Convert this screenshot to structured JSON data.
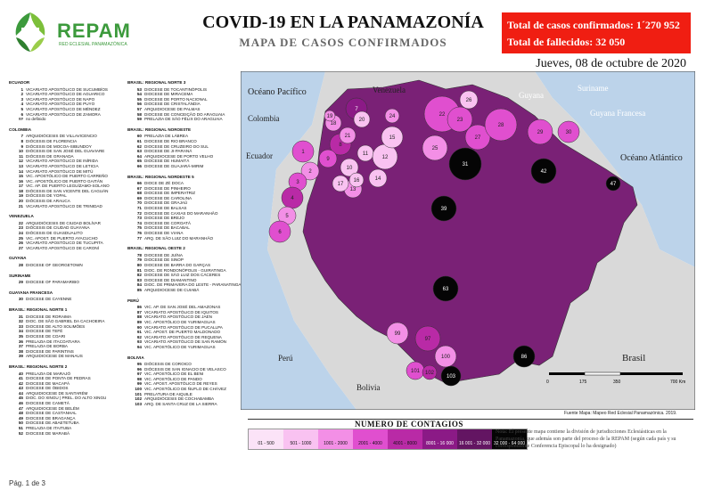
{
  "header": {
    "brand": "REPAM",
    "brand_sub": "RED ECLESIAL PANAMAZÓNICA",
    "title": "COVID-19 EN LA PANAMAZONÍA",
    "subtitle": "MAPA DE CASOS CONFIRMADOS",
    "confirmed": "Total de casos confirmados: 1´270 952",
    "deaths": "Total de fallecidos: 32 050",
    "date": "Jueves, 08 de octubre de 2020"
  },
  "colors": {
    "accent_red": "#f01e12",
    "brand_green": "#3c9a3c"
  },
  "legend_col1": [
    {
      "group": "ECUADOR",
      "items": [
        {
          "n": "1",
          "name": "VICARIATO APOSTÓLICO DE SUCUMBÍOS"
        },
        {
          "n": "2",
          "name": "VICARIATO APOSTÓLICO DE AGUARICO"
        },
        {
          "n": "3",
          "name": "VICARIATO APOSTÓLICO DE NAPO"
        },
        {
          "n": "4",
          "name": "VICARIATO APOSTÓLICO DE PUYO"
        },
        {
          "n": "5",
          "name": "VICARIATO APOSTÓLICO DE MÉNDEZ"
        },
        {
          "n": "6",
          "name": "VICARIATO APOSTÓLICO DE ZAMORA"
        },
        {
          "n": "##",
          "name": "no definido"
        }
      ]
    },
    {
      "group": "COLOMBIA",
      "items": [
        {
          "n": "7",
          "name": "ARQUIDIÓCESIS DE VILLAVICENCIO"
        },
        {
          "n": "8",
          "name": "DIÓCESIS DE FLORENCIA"
        },
        {
          "n": "9",
          "name": "DIÓCESIS DE MOCOA-SIBUNDOY"
        },
        {
          "n": "10",
          "name": "DIÓCESIS DE SAN JOSÉ DEL GUAVIARE"
        },
        {
          "n": "11",
          "name": "DIÓCESIS DE GRANADA"
        },
        {
          "n": "12",
          "name": "VICARIATO APOSTÓLICO DE INÍRIDA"
        },
        {
          "n": "13",
          "name": "VICARIATO APOSTÓLICO DE LETICIA"
        },
        {
          "n": "14",
          "name": "VICARIATO APOSTÓLICO DE MITÚ"
        },
        {
          "n": "15",
          "name": "VIC. APOSTÓLICO DE PUERTO CARREÑO"
        },
        {
          "n": "16",
          "name": "VIC. APOSTÓLICO DE PUERTO GAITÁN"
        },
        {
          "n": "17",
          "name": "VIC. AP. DE PUERTO LEGUÍZAMO-SOLANO"
        },
        {
          "n": "18",
          "name": "DIÓCESIS DE SAN VICENTE DEL CAGUÁN"
        },
        {
          "n": "19",
          "name": "DIÓCESIS DE YOPAL"
        },
        {
          "n": "20",
          "name": "DIÓCESIS DE ARAUCA"
        },
        {
          "n": "21",
          "name": "VICARIATO APOSTÓLICO DE TRINIDAD"
        }
      ]
    },
    {
      "group": "VENEZUELA",
      "items": [
        {
          "n": "22",
          "name": "ARQUIDIÓCESIS DE CIUDAD BOLÍVAR"
        },
        {
          "n": "23",
          "name": "DIÓCESIS DE CIUDAD GUAYANA"
        },
        {
          "n": "24",
          "name": "DIÓCESIS DE GUASDUALITO"
        },
        {
          "n": "25",
          "name": "VIC. APOST. DE PUERTO AYACUCHO"
        },
        {
          "n": "26",
          "name": "VICARIATO APOSTÓLICO DE TUCUPITA"
        },
        {
          "n": "27",
          "name": "VICARIATO APOSTÓLICO DE CARONÍ"
        }
      ]
    },
    {
      "group": "GUYANA",
      "items": [
        {
          "n": "28",
          "name": "DIOCESE OF GEORGETOWN"
        }
      ]
    },
    {
      "group": "SURINAME",
      "items": [
        {
          "n": "29",
          "name": "DIOCESE OF PARAMARIBO"
        }
      ]
    },
    {
      "group": "GUAYANA FRANCESA",
      "items": [
        {
          "n": "30",
          "name": "DIOCESE DE CAYENNE"
        }
      ]
    },
    {
      "group": "BRASIL: REGIONAL NORTE 1",
      "items": [
        {
          "n": "31",
          "name": "DIOCESE DE RORAIMA"
        },
        {
          "n": "32",
          "name": "DIOC. DE SÃO GABRIEL DA CACHOEIRA"
        },
        {
          "n": "33",
          "name": "DIOCESE DE ALTO SOLIMÕES"
        },
        {
          "n": "34",
          "name": "DIOCESE DE TEFÉ"
        },
        {
          "n": "35",
          "name": "DIOCESE DE COARI"
        },
        {
          "n": "36",
          "name": "PRELAZIA DE ITACOATIARA"
        },
        {
          "n": "37",
          "name": "PRELAZIA DE BORBA"
        },
        {
          "n": "38",
          "name": "DIOCESE DE PARINTINS"
        },
        {
          "n": "39",
          "name": "ARQUIDIOCESE DE MANAUS"
        }
      ]
    },
    {
      "group": "BRASIL: REGIONAL NORTE 2",
      "items": [
        {
          "n": "40",
          "name": "PRELAZIA DE MARAJÓ"
        },
        {
          "n": "41",
          "name": "DIOCESE DE PONTA DE PEDRAS"
        },
        {
          "n": "42",
          "name": "DIOCESE DE MACAPÁ"
        },
        {
          "n": "43",
          "name": "DIOCESE DE ÓBIDOS"
        },
        {
          "n": "44",
          "name": "ARQUIDIOCESE DE SANTARÉM"
        },
        {
          "n": "45",
          "name": "DIOC. DO XINGU | PREL. DO ALTO XINGU"
        },
        {
          "n": "46",
          "name": "DIOCESE DE CAMETÁ"
        },
        {
          "n": "47",
          "name": "ARQUIDIOCESE DE BELÉM"
        },
        {
          "n": "48",
          "name": "DIOCESE DE CASTANHAL"
        },
        {
          "n": "49",
          "name": "DIOCESE DE BRAGANÇA"
        },
        {
          "n": "50",
          "name": "DIOCESE DE ABAETETUBA"
        },
        {
          "n": "51",
          "name": "PRELAZIA DE ITAITUBA"
        },
        {
          "n": "52",
          "name": "DIOCESE DE MARABÁ"
        }
      ]
    }
  ],
  "legend_col2": [
    {
      "group": "BRASIL: REGIONAL NORTE 3",
      "items": [
        {
          "n": "53",
          "name": "DIOCESE DE TOCANTINÓPOLIS"
        },
        {
          "n": "54",
          "name": "DIOCESE DE MIRACEMA"
        },
        {
          "n": "55",
          "name": "DIOCESE DE PORTO NACIONAL"
        },
        {
          "n": "56",
          "name": "DIOCESE DE CRISTALÂNDIA"
        },
        {
          "n": "57",
          "name": "ARQUIDIOCESE DE PALMAS"
        },
        {
          "n": "58",
          "name": "DIOCESE DE CONCEIÇÃO DO ARAGUAIA"
        },
        {
          "n": "59",
          "name": "PRELAZIA DE SÃO FÉLIX DO ARAGUAIA"
        }
      ]
    },
    {
      "group": "BRASIL: REGIONAL NOROESTE",
      "items": [
        {
          "n": "60",
          "name": "PRELAZIA DE LÁBREA"
        },
        {
          "n": "61",
          "name": "DIOCESE DE RIO BRANCO"
        },
        {
          "n": "62",
          "name": "DIOCESE DE CRUZEIRO DO SUL"
        },
        {
          "n": "63",
          "name": "DIOCESE DE JI-PARANÁ"
        },
        {
          "n": "64",
          "name": "ARQUIDIOCESE DE PORTO VELHO"
        },
        {
          "n": "65",
          "name": "DIOCESE DE HUMAITÁ"
        },
        {
          "n": "66",
          "name": "DIOCESE DE GUAJARÁ-MIRIM"
        }
      ]
    },
    {
      "group": "BRASIL: REGIONAL NORDESTE 5",
      "items": [
        {
          "n": "66",
          "name": "DIOCE DE ZÉ DOCA"
        },
        {
          "n": "67",
          "name": "DIOCESE DE PINHEIRO"
        },
        {
          "n": "68",
          "name": "DIOCESE DE IMPERATRIZ"
        },
        {
          "n": "69",
          "name": "DIOCESE DE CAROLINA"
        },
        {
          "n": "70",
          "name": "DIOCESE DE GRAJAÚ"
        },
        {
          "n": "71",
          "name": "DIOCESE DE BALSAS"
        },
        {
          "n": "72",
          "name": "DIOCESE DE CAXIAS DO MARANHÃO"
        },
        {
          "n": "73",
          "name": "DIOCESE DE BREJO"
        },
        {
          "n": "74",
          "name": "DIOCESE DE COROATÁ"
        },
        {
          "n": "75",
          "name": "DIOCESE DE BACABAL"
        },
        {
          "n": "76",
          "name": "DIOCESE DE VIANA"
        },
        {
          "n": "77",
          "name": "ARQ. DE SÃO LUIZ DO MARANHÃO"
        }
      ]
    },
    {
      "group": "BRASIL: REGIONAL OESTE 2",
      "items": [
        {
          "n": "78",
          "name": "DIOCESE DE JUÍNA"
        },
        {
          "n": "79",
          "name": "DIOCESE DE SINOP"
        },
        {
          "n": "80",
          "name": "DIOCESE DE BARRA DO GARÇAS"
        },
        {
          "n": "81",
          "name": "DIOC. DE RONDONÓPOLIS - GUIRATINGA"
        },
        {
          "n": "82",
          "name": "DIOCESE DE SÃO LUIZ DOS CÁCERES"
        },
        {
          "n": "83",
          "name": "DIOCESE DE DIAMANTINO"
        },
        {
          "n": "84",
          "name": "DIOC. DE PRIMAVERA DO LESTE - PARANATINGA"
        },
        {
          "n": "85",
          "name": "ARQUIDIOCESE DE CUIABÁ"
        }
      ]
    },
    {
      "group": "PERÚ",
      "items": [
        {
          "n": "86",
          "name": "VIC. AP. DE SAN JOSÉ DEL AMAZONAS"
        },
        {
          "n": "87",
          "name": "VICARIATO APOSTÓLICO DE IQUITOS"
        },
        {
          "n": "88",
          "name": "VICARIATO APOSTÓLICO DE JAÉN"
        },
        {
          "n": "89",
          "name": "VIC. APOSTÓLICO DE YURIMAGUAS"
        },
        {
          "n": "90",
          "name": "VICARIATO APOSTÓLICO DE PUCALLPA"
        },
        {
          "n": "91",
          "name": "VIC. APOST. DE PUERTO MALDONADO"
        },
        {
          "n": "92",
          "name": "VICARIATO APOSTÓLICO DE REQUENA"
        },
        {
          "n": "93",
          "name": "VICARIATO APOSTÓLICO DE SAN RAMÓN"
        },
        {
          "n": "94",
          "name": "VIC. APOSTÓLICO DE YURIMAGUAS"
        }
      ]
    },
    {
      "group": "BOLIVIA",
      "items": [
        {
          "n": "95",
          "name": "DIÓCESIS DE COROICO"
        },
        {
          "n": "96",
          "name": "DIÓCESIS DE SAN IGNACIO DE VELASCO"
        },
        {
          "n": "97",
          "name": "VIC. APOSTÓLICO DE EL BENI"
        },
        {
          "n": "98",
          "name": "VIC. APOSTÓLICO DE PANDO"
        },
        {
          "n": "99",
          "name": "VIC. APOST. APOSTÓLICO DE REYES"
        },
        {
          "n": "100",
          "name": "VIC. APOSTÓLICO DE ÑUFLO DE CHÁVEZ"
        },
        {
          "n": "101",
          "name": "PRELATURA DE AIQUILE"
        },
        {
          "n": "102",
          "name": "ARQUIDIÓCESIS DE COCHABAMBA"
        },
        {
          "n": "103",
          "name": "ARQ. DE SANTA CRUZ DE LA SIERRA"
        }
      ]
    }
  ],
  "map_labels": {
    "oceano_pacifico": "Océano Pacífico",
    "oceano_atlantico": "Océano Atlántico",
    "venezuela": "Venezuela",
    "guyana": "Guyana",
    "suriname": "Suriname",
    "guyana_francesa": "Guyana Francesa",
    "colombia": "Colombia",
    "ecuador": "Ecuador",
    "peru": "Perú",
    "bolivia": "Bolivia",
    "brasil": "Brasil",
    "scale": [
      "0",
      "175",
      "350",
      "700 Km"
    ]
  },
  "regions": [
    {
      "num": "1",
      "level": 4
    },
    {
      "num": "2",
      "level": 3
    },
    {
      "num": "3",
      "level": 4
    },
    {
      "num": "4",
      "level": 5
    },
    {
      "num": "5",
      "level": 3
    },
    {
      "num": "6",
      "level": 4
    },
    {
      "num": "7",
      "level": 6
    },
    {
      "num": "8",
      "level": 5
    },
    {
      "num": "9",
      "level": 4
    },
    {
      "num": "10",
      "level": 2
    },
    {
      "num": "11",
      "level": 2
    },
    {
      "num": "12",
      "level": 2
    },
    {
      "num": "13",
      "level": 3
    },
    {
      "num": "14",
      "level": 2
    },
    {
      "num": "15",
      "level": 2
    },
    {
      "num": "16",
      "level": 2
    },
    {
      "num": "17",
      "level": 2
    },
    {
      "num": "18",
      "level": 3
    },
    {
      "num": "19",
      "level": 3
    },
    {
      "num": "20",
      "level": 2
    },
    {
      "num": "21",
      "level": 3
    },
    {
      "num": "22",
      "level": 4
    },
    {
      "num": "23",
      "level": 4
    },
    {
      "num": "24",
      "level": 3
    },
    {
      "num": "25",
      "level": 3
    },
    {
      "num": "26",
      "level": 2
    },
    {
      "num": "27",
      "level": 4
    },
    {
      "num": "28",
      "level": 4
    },
    {
      "num": "29",
      "level": 4
    },
    {
      "num": "30",
      "level": 4
    },
    {
      "num": "31",
      "level": 9
    },
    {
      "num": "39",
      "level": 9
    },
    {
      "num": "42",
      "level": 9
    },
    {
      "num": "47",
      "level": 9
    },
    {
      "num": "63",
      "level": 9
    },
    {
      "num": "86",
      "level": 9
    },
    {
      "num": "97",
      "level": 5
    },
    {
      "num": "99",
      "level": 3
    },
    {
      "num": "100",
      "level": 3
    },
    {
      "num": "101",
      "level": 4
    },
    {
      "num": "102",
      "level": 5
    },
    {
      "num": "103",
      "level": 9
    }
  ],
  "contagios": {
    "title": "NUMERO DE CONTAGIOS",
    "bins": [
      {
        "label": "01 - 500",
        "color": "#fbe3f7"
      },
      {
        "label": "501 - 1000",
        "color": "#f9c2f1"
      },
      {
        "label": "1001 - 2000",
        "color": "#f38fe6"
      },
      {
        "label": "2001 - 4000",
        "color": "#e04fcf"
      },
      {
        "label": "4001 - 8000",
        "color": "#b92aa6"
      },
      {
        "label": "8001 - 16 000",
        "color": "#8b1a86"
      },
      {
        "label": "16 001 - 32 000",
        "color": "#631562"
      },
      {
        "label": "32 000 - 64 000",
        "color": "#050505"
      }
    ]
  },
  "source": "Fuente Mapa: Mapeo Red Eclesial Panamazónica. 2019.",
  "note": "Nota: El presente mapa contiene la división de jurisdicciones Eclesiásticas en la Panamazonía, que además son parte del proceso de la REPAM  (según cada país y su correspondiente Conferencia Episcopal lo ha designado)",
  "page": "Pág. 1 de 3"
}
